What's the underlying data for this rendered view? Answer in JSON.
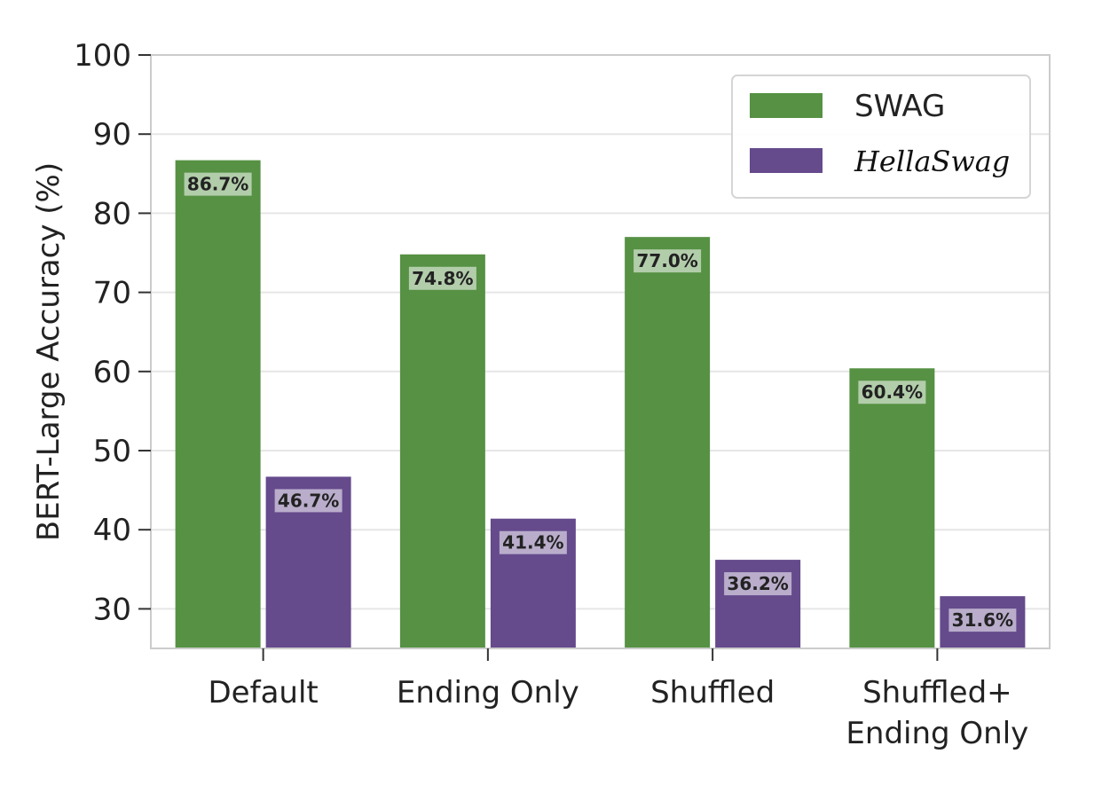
{
  "chart_data": {
    "type": "bar",
    "categories": [
      [
        "Default"
      ],
      [
        "Ending Only"
      ],
      [
        "Shuffled"
      ],
      [
        "Shuffled+",
        "Ending Only"
      ]
    ],
    "series": [
      {
        "name": "SWAG",
        "values": [
          86.7,
          74.8,
          77.0,
          60.4
        ],
        "labels": [
          "86.7%",
          "74.8%",
          "77.0%",
          "60.4%"
        ],
        "color": "#569144"
      },
      {
        "name": "HellaSwag",
        "values": [
          46.7,
          41.4,
          36.2,
          31.6
        ],
        "labels": [
          "46.7%",
          "41.4%",
          "36.2%",
          "31.6%"
        ],
        "color": "#654A8C"
      }
    ],
    "ylabel": "BERT-Large Accuracy (%)",
    "xlabel": "",
    "ylim": [
      25,
      100
    ],
    "yticks": [
      30,
      40,
      50,
      60,
      70,
      80,
      90,
      100
    ],
    "grid": "horizontal",
    "legend_position": "top-right"
  }
}
